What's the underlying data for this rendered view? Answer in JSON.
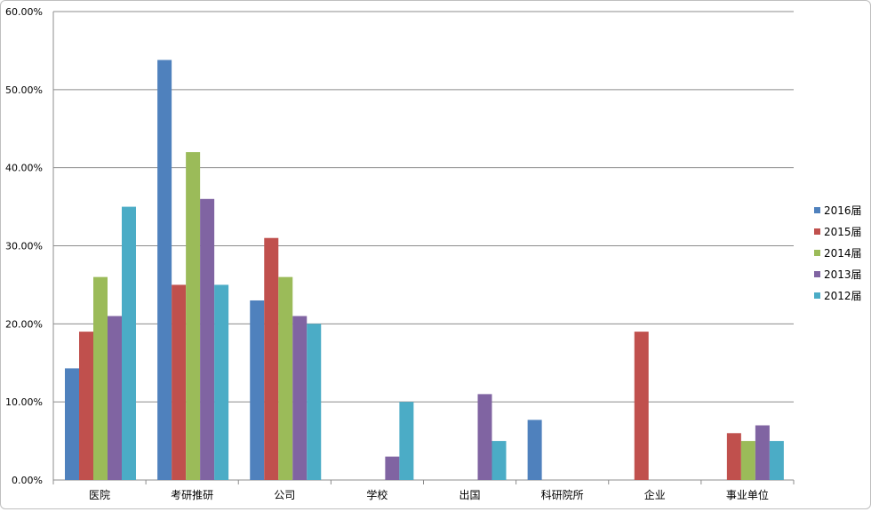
{
  "chart_data": {
    "type": "bar",
    "title": "",
    "xlabel": "",
    "ylabel": "",
    "ylim": [
      0,
      0.6
    ],
    "ytick_step": 0.1,
    "ytick_labels": [
      "0.00%",
      "10.00%",
      "20.00%",
      "30.00%",
      "40.00%",
      "50.00%",
      "60.00%"
    ],
    "grid": "horizontal",
    "legend_position": "right",
    "categories": [
      "医院",
      "考研推研",
      "公司",
      "学校",
      "出国",
      "科研院所",
      "企业",
      "事业单位"
    ],
    "series": [
      {
        "name": "2016届",
        "color": "#4f81bd",
        "values": [
          0.143,
          0.538,
          0.23,
          0,
          0,
          0.077,
          0,
          0
        ]
      },
      {
        "name": "2015届",
        "color": "#c0504d",
        "values": [
          0.19,
          0.25,
          0.31,
          0,
          0,
          0,
          0.19,
          0.06
        ]
      },
      {
        "name": "2014届",
        "color": "#9bbb59",
        "values": [
          0.26,
          0.42,
          0.26,
          0,
          0,
          0,
          0,
          0.05
        ]
      },
      {
        "name": "2013届",
        "color": "#8064a2",
        "values": [
          0.21,
          0.36,
          0.21,
          0.03,
          0.11,
          0,
          0,
          0.07
        ]
      },
      {
        "name": "2012届",
        "color": "#4bacc6",
        "values": [
          0.35,
          0.25,
          0.2,
          0.1,
          0.05,
          0,
          0,
          0.05
        ]
      }
    ]
  }
}
